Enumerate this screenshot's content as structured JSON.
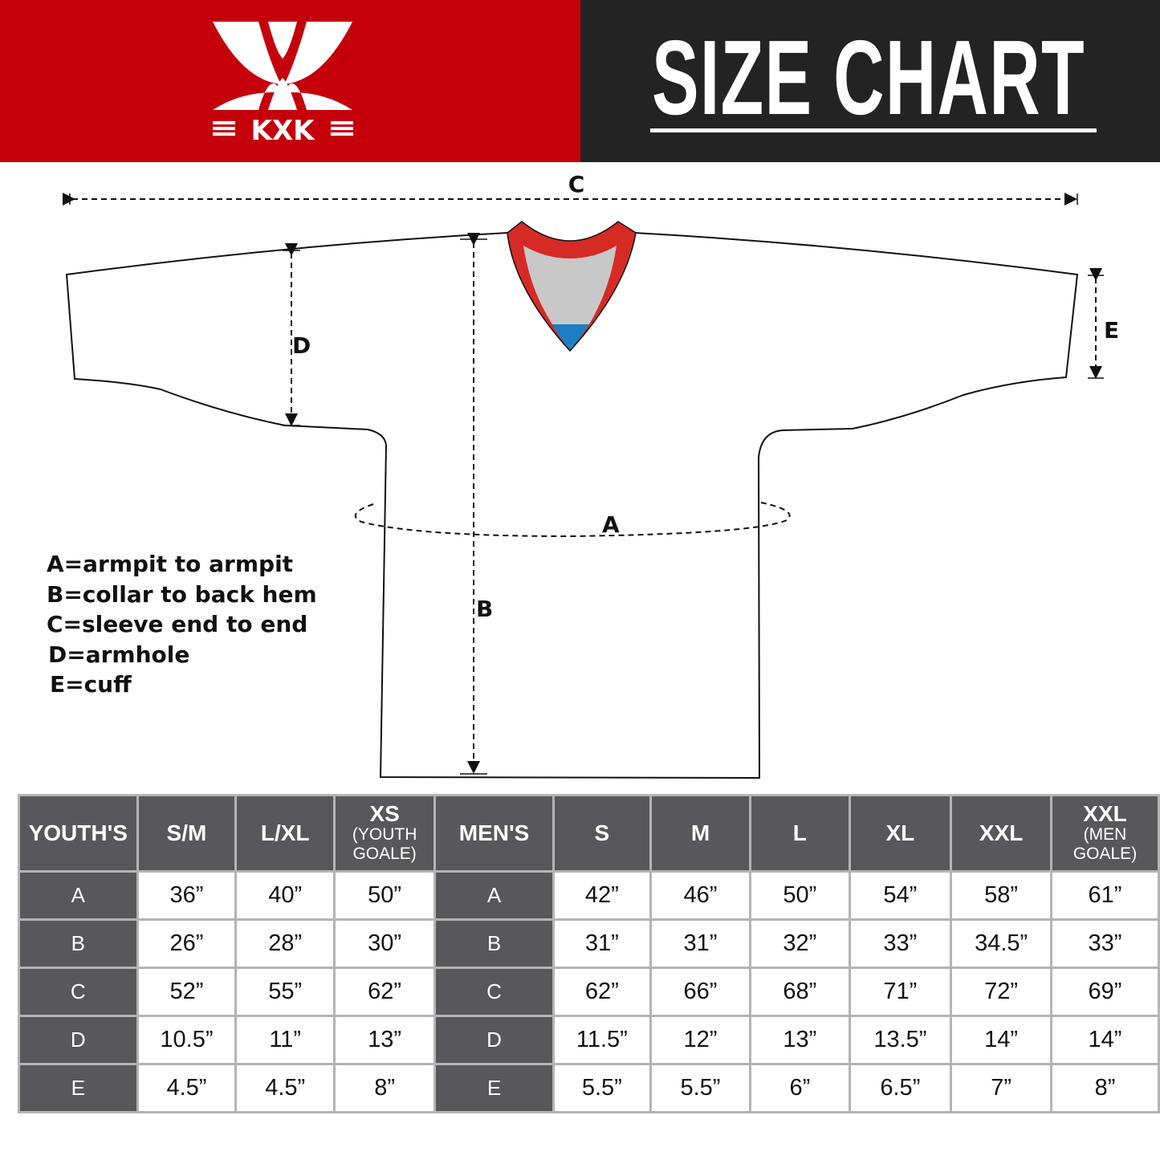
{
  "header": {
    "brand": "KXK",
    "title": "SIZE CHART",
    "colors": {
      "brand_red": "#c4000b",
      "dark": "#232323"
    }
  },
  "diagram": {
    "labels": {
      "a": "A",
      "b": "B",
      "c": "C",
      "d": "D",
      "e": "E"
    },
    "legend": [
      "A=armpit to armpit",
      "B=collar to back hem",
      "C=sleeve end to end",
      "D=armhole",
      "E=cuff"
    ],
    "collar_colors": {
      "trim": "#d62a25",
      "inner": "#c8c8c8",
      "tip": "#1b7fc4"
    }
  },
  "table": {
    "youth": {
      "header": "YOUTH'S",
      "columns": [
        {
          "main": "S/M",
          "sub": ""
        },
        {
          "main": "L/XL",
          "sub": ""
        },
        {
          "main": "XS",
          "sub": "(YOUTH GOALE)"
        }
      ],
      "rows": [
        {
          "label": "A",
          "values": [
            "36”",
            "40”",
            "50”"
          ]
        },
        {
          "label": "B",
          "values": [
            "26”",
            "28”",
            "30”"
          ]
        },
        {
          "label": "C",
          "values": [
            "52”",
            "55”",
            "62”"
          ]
        },
        {
          "label": "D",
          "values": [
            "10.5”",
            "11”",
            "13”"
          ]
        },
        {
          "label": "E",
          "values": [
            "4.5”",
            "4.5”",
            "8”"
          ]
        }
      ]
    },
    "men": {
      "header": "MEN'S",
      "columns": [
        {
          "main": "S",
          "sub": ""
        },
        {
          "main": "M",
          "sub": ""
        },
        {
          "main": "L",
          "sub": ""
        },
        {
          "main": "XL",
          "sub": ""
        },
        {
          "main": "XXL",
          "sub": ""
        },
        {
          "main": "XXL",
          "sub": "(MEN GOALE)"
        }
      ],
      "rows": [
        {
          "label": "A",
          "values": [
            "42”",
            "46”",
            "50”",
            "54”",
            "58”",
            "61”"
          ]
        },
        {
          "label": "B",
          "values": [
            "31”",
            "31”",
            "32”",
            "33”",
            "34.5”",
            "33”"
          ]
        },
        {
          "label": "C",
          "values": [
            "62”",
            "66”",
            "68”",
            "71”",
            "72”",
            "69”"
          ]
        },
        {
          "label": "D",
          "values": [
            "11.5”",
            "12”",
            "13”",
            "13.5”",
            "14”",
            "14”"
          ]
        },
        {
          "label": "E",
          "values": [
            "5.5”",
            "5.5”",
            "6”",
            "6.5”",
            "7”",
            "8”"
          ]
        }
      ]
    }
  }
}
